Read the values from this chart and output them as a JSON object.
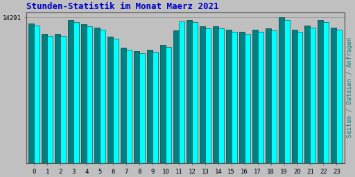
{
  "title": "Stunden-Statistik im Monat Maerz 2021",
  "ylabel_right": "Seiten / Dateien / Anfragen",
  "ymax_label": "14291",
  "ytick_value": 14291,
  "hours": [
    0,
    1,
    2,
    3,
    4,
    5,
    6,
    7,
    8,
    9,
    10,
    11,
    12,
    13,
    14,
    15,
    16,
    17,
    18,
    19,
    20,
    21,
    22,
    23
  ],
  "bar1_values": [
    13700,
    12700,
    12700,
    14050,
    13650,
    13300,
    12400,
    11300,
    10950,
    11100,
    11600,
    13000,
    14050,
    13400,
    13400,
    13100,
    12900,
    13100,
    13200,
    14291,
    13100,
    13500,
    14050,
    13300
  ],
  "bar2_values": [
    13500,
    12500,
    12500,
    13800,
    13450,
    13100,
    12200,
    11100,
    10750,
    10900,
    11400,
    13900,
    13850,
    13200,
    13200,
    12900,
    12700,
    12900,
    13000,
    14050,
    12900,
    13300,
    13800,
    13100
  ],
  "bar1_color": "#008080",
  "bar2_color": "#00FFFF",
  "bar1_edge": "#004040",
  "bar2_edge": "#006060",
  "bg_color": "#C0C0C0",
  "plot_bg": "#C0C0C0",
  "title_color": "#0000CC",
  "axis_label_color": "#008080",
  "tick_color": "#000000",
  "grid_color": "#999999",
  "ylim_min": 0,
  "ylim_max": 14800,
  "bar_width": 0.42
}
